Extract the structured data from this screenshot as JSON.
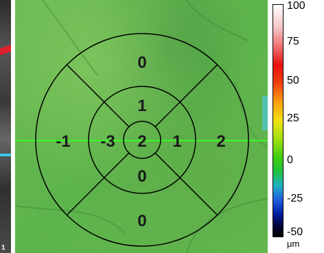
{
  "left_strip": {
    "tick_label": "1"
  },
  "thickness_map": {
    "grid_values": {
      "center": "2",
      "inner_superior": "1",
      "inner_inferior": "0",
      "inner_temporal": "-3",
      "inner_nasal": "1",
      "outer_superior": "0",
      "outer_inferior": "0",
      "outer_temporal": "-1",
      "outer_nasal": "2"
    },
    "scan_line_color": "#33ff22",
    "grid_line_color": "#000000"
  },
  "color_scale": {
    "labels": [
      "100",
      "75",
      "50",
      "25",
      "0",
      "-25",
      "-50"
    ],
    "unit": "μm"
  }
}
